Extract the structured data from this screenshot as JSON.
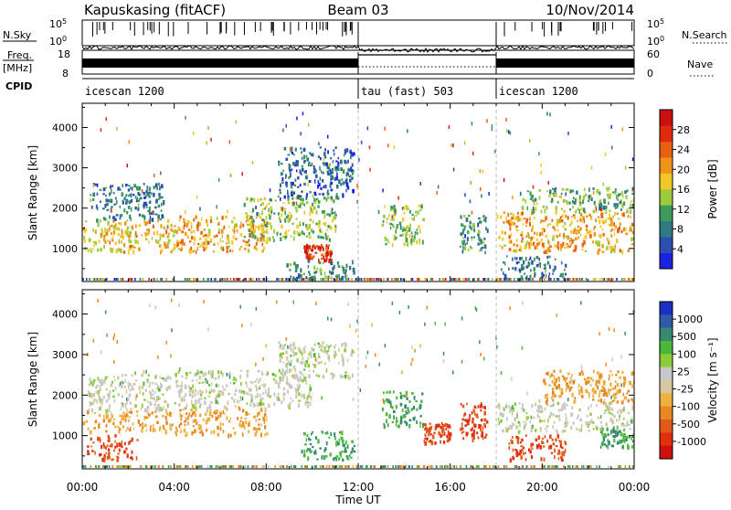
{
  "header": {
    "station": "Kapuskasing (fitACF)",
    "beam": "Beam 03",
    "date": "10/Nov/2014"
  },
  "side_labels": {
    "nsky": "N.Sky",
    "freq": "Freq.",
    "freq_unit": "[MHz]",
    "cpid": "CPID",
    "nsearch": "N.Search",
    "nave": "Nave"
  },
  "top_panels": {
    "nsky_ticks": [
      "10^5",
      "10^0"
    ],
    "nsearch_ticks": [
      "10^5",
      "10^0"
    ],
    "freq_ticks": [
      "18",
      "8"
    ],
    "nave_ticks": [
      "60",
      "0"
    ],
    "cpid_segments": [
      {
        "label": "icescan 1200",
        "start": 0,
        "end": 12
      },
      {
        "label": "tau (fast) 503",
        "start": 12,
        "end": 18
      },
      {
        "label": "icescan 1200",
        "start": 18,
        "end": 24
      }
    ]
  },
  "colors": {
    "power_scale": [
      "#1a23e0",
      "#2a4fb0",
      "#2f7a80",
      "#3e9a5a",
      "#9ccc3c",
      "#f0c828",
      "#f09418",
      "#e85f10",
      "#e02a10",
      "#cc1010"
    ],
    "velocity_scale": [
      "#1b2fc0",
      "#2f5aa8",
      "#358a70",
      "#4cb83a",
      "#8ccc3a",
      "#c8c8c8",
      "#d8c8a0",
      "#f0b040",
      "#e88820",
      "#e05a18",
      "#e03010",
      "#d01010"
    ]
  },
  "chart_data": [
    {
      "type": "heatmap",
      "title": "",
      "ylabel": "Slant Range [km]",
      "xlabel": "",
      "xlim": [
        0,
        24
      ],
      "ylim": [
        180,
        4600
      ],
      "x_ticks": [
        "00:00",
        "04:00",
        "08:00",
        "12:00",
        "16:00",
        "20:00",
        "00:00"
      ],
      "y_ticks": [
        1000,
        2000,
        3000,
        4000
      ],
      "colorbar": {
        "label": "Power [dB]",
        "ticks": [
          4,
          8,
          12,
          16,
          20,
          24,
          28
        ],
        "range": [
          0,
          32
        ]
      },
      "bands": [
        {
          "t0": 0.0,
          "t1": 4.0,
          "r0": 900,
          "r1": 1700,
          "level": 18
        },
        {
          "t0": 0.3,
          "t1": 3.5,
          "r0": 1700,
          "r1": 2600,
          "level": 8
        },
        {
          "t0": 4.0,
          "t1": 8.0,
          "r0": 900,
          "r1": 1800,
          "level": 20
        },
        {
          "t0": 7.0,
          "t1": 11.0,
          "r0": 1200,
          "r1": 2300,
          "level": 14
        },
        {
          "t0": 8.5,
          "t1": 11.8,
          "r0": 2200,
          "r1": 3500,
          "level": 6
        },
        {
          "t0": 9.6,
          "t1": 10.8,
          "r0": 700,
          "r1": 1100,
          "level": 28
        },
        {
          "t0": 8.8,
          "t1": 11.9,
          "r0": 250,
          "r1": 700,
          "level": 10
        },
        {
          "t0": 13.0,
          "t1": 14.8,
          "r0": 1100,
          "r1": 2100,
          "level": 14
        },
        {
          "t0": 16.4,
          "t1": 17.6,
          "r0": 900,
          "r1": 1800,
          "level": 10
        },
        {
          "t0": 18.0,
          "t1": 24.0,
          "r0": 900,
          "r1": 1900,
          "level": 20
        },
        {
          "t0": 19.0,
          "t1": 24.0,
          "r0": 1900,
          "r1": 2500,
          "level": 12
        },
        {
          "t0": 18.2,
          "t1": 21.0,
          "r0": 250,
          "r1": 800,
          "level": 8
        }
      ]
    },
    {
      "type": "heatmap",
      "title": "",
      "ylabel": "Slant Range [km]",
      "xlabel": "Time UT",
      "xlim": [
        0,
        24
      ],
      "ylim": [
        180,
        4600
      ],
      "x_ticks": [
        "00:00",
        "04:00",
        "08:00",
        "12:00",
        "16:00",
        "20:00",
        "00:00"
      ],
      "y_ticks": [
        1000,
        2000,
        3000,
        4000
      ],
      "colorbar": {
        "label": "Velocity [m s⁻¹]",
        "ticks": [
          "1000",
          "500",
          "100",
          "25",
          "-25",
          "-100",
          "-500",
          "-1000"
        ],
        "range": [
          -1200,
          1200
        ]
      },
      "bands": [
        {
          "t0": 0.0,
          "t1": 4.0,
          "r0": 1100,
          "r1": 1600,
          "level": -100
        },
        {
          "t0": 0.2,
          "t1": 3.8,
          "r0": 1600,
          "r1": 2500,
          "level": 0
        },
        {
          "t0": 0.2,
          "t1": 2.5,
          "r0": 400,
          "r1": 1000,
          "level": -500
        },
        {
          "t0": 4.0,
          "t1": 8.0,
          "r0": 1000,
          "r1": 1700,
          "level": -100
        },
        {
          "t0": 4.0,
          "t1": 10.0,
          "r0": 1700,
          "r1": 2600,
          "level": 0
        },
        {
          "t0": 8.5,
          "t1": 11.8,
          "r0": 2400,
          "r1": 3300,
          "level": 0
        },
        {
          "t0": 9.5,
          "t1": 11.8,
          "r0": 400,
          "r1": 1100,
          "level": 100
        },
        {
          "t0": 13.0,
          "t1": 14.8,
          "r0": 1200,
          "r1": 2100,
          "level": 100
        },
        {
          "t0": 14.8,
          "t1": 16.0,
          "r0": 800,
          "r1": 1300,
          "level": -500
        },
        {
          "t0": 16.4,
          "t1": 17.6,
          "r0": 900,
          "r1": 1800,
          "level": -500
        },
        {
          "t0": 18.0,
          "t1": 24.0,
          "r0": 1100,
          "r1": 1800,
          "level": 0
        },
        {
          "t0": 20.0,
          "t1": 24.0,
          "r0": 1800,
          "r1": 2600,
          "level": -100
        },
        {
          "t0": 18.5,
          "t1": 21.0,
          "r0": 400,
          "r1": 1000,
          "level": -500
        },
        {
          "t0": 22.5,
          "t1": 24.0,
          "r0": 700,
          "r1": 1200,
          "level": 100
        }
      ]
    }
  ]
}
